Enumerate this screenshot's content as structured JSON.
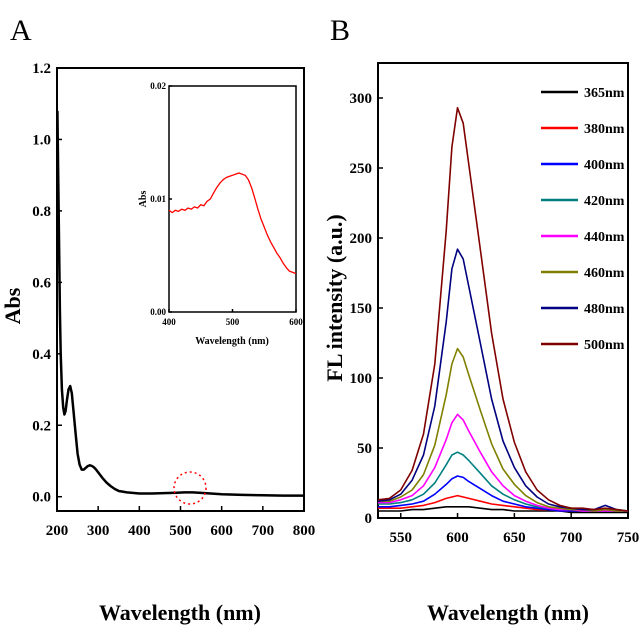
{
  "chart_data": [
    {
      "panel": "A",
      "type": "line",
      "xlabel": "Wavelength (nm)",
      "ylabel": "Abs",
      "xlim": [
        200,
        800
      ],
      "ylim": [
        -0.04,
        1.2
      ],
      "xticks": [
        200,
        300,
        400,
        500,
        600,
        700,
        800
      ],
      "yticks": [
        0.0,
        0.2,
        0.4,
        0.6,
        0.8,
        1.0,
        1.2
      ],
      "xtick_labels": [
        "200",
        "300",
        "400",
        "500",
        "600",
        "700",
        "800"
      ],
      "ytick_labels": [
        "0.0",
        "0.2",
        "0.4",
        "0.6",
        "0.8",
        "1.0",
        "1.2"
      ],
      "color": "#000000",
      "highlight_circle": {
        "center_x": 520,
        "center_y": 0.015,
        "color": "#ff0000"
      },
      "series": [
        {
          "x": [
            201,
            203,
            205,
            207,
            209,
            212,
            215,
            218,
            221,
            224,
            228,
            232,
            236,
            240,
            245,
            250,
            255,
            260,
            265,
            270,
            275,
            280,
            285,
            290,
            295,
            300,
            310,
            320,
            330,
            340,
            350,
            370,
            400,
            430,
            460,
            490,
            510,
            530,
            560,
            600,
            650,
            700,
            750,
            800
          ],
          "y": [
            1.08,
            0.9,
            0.7,
            0.52,
            0.4,
            0.3,
            0.25,
            0.23,
            0.24,
            0.27,
            0.3,
            0.31,
            0.29,
            0.24,
            0.18,
            0.12,
            0.09,
            0.076,
            0.076,
            0.081,
            0.086,
            0.088,
            0.086,
            0.082,
            0.076,
            0.068,
            0.053,
            0.04,
            0.03,
            0.022,
            0.016,
            0.012,
            0.009,
            0.009,
            0.01,
            0.011,
            0.012,
            0.012,
            0.01,
            0.007,
            0.005,
            0.004,
            0.003,
            0.003
          ]
        }
      ]
    },
    {
      "panel": "A-inset",
      "type": "line",
      "xlabel": "Wavelength (nm)",
      "ylabel": "Abs",
      "xlim": [
        400,
        600
      ],
      "ylim": [
        0,
        0.02
      ],
      "xticks": [
        400,
        500,
        600
      ],
      "yticks": [
        0.0,
        0.01,
        0.02
      ],
      "xtick_labels": [
        "400",
        "500",
        "600"
      ],
      "ytick_labels": [
        "0.00",
        "0.01",
        "0.02"
      ],
      "color": "#ff0000",
      "series": [
        {
          "x": [
            400,
            405,
            410,
            415,
            420,
            425,
            430,
            435,
            440,
            445,
            450,
            455,
            460,
            465,
            470,
            475,
            480,
            485,
            490,
            495,
            500,
            505,
            510,
            515,
            520,
            525,
            530,
            535,
            540,
            545,
            550,
            555,
            560,
            565,
            570,
            575,
            580,
            585,
            590,
            595,
            600
          ],
          "y": [
            0.009,
            0.0088,
            0.009,
            0.0089,
            0.0091,
            0.009,
            0.0092,
            0.0091,
            0.0093,
            0.0092,
            0.0095,
            0.0094,
            0.0098,
            0.01,
            0.0105,
            0.011,
            0.0114,
            0.0117,
            0.0119,
            0.012,
            0.0121,
            0.0122,
            0.0123,
            0.0122,
            0.0121,
            0.0117,
            0.011,
            0.0101,
            0.0091,
            0.0082,
            0.0075,
            0.0068,
            0.0062,
            0.0057,
            0.0052,
            0.0048,
            0.0043,
            0.0039,
            0.0036,
            0.0035,
            0.0034
          ]
        }
      ]
    },
    {
      "panel": "B",
      "type": "line",
      "xlabel": "Wavelength (nm)",
      "ylabel": "FL intensity (a.u.)",
      "xlim": [
        530,
        750
      ],
      "ylim": [
        0,
        325
      ],
      "xticks": [
        550,
        600,
        650,
        700,
        750
      ],
      "yticks": [
        0,
        50,
        100,
        150,
        200,
        250,
        300
      ],
      "xtick_labels": [
        "550",
        "600",
        "650",
        "700",
        "750"
      ],
      "ytick_labels": [
        "0",
        "50",
        "100",
        "150",
        "200",
        "250",
        "300"
      ],
      "legend_position": "top-right",
      "x": [
        530,
        540,
        550,
        560,
        570,
        580,
        590,
        595,
        600,
        605,
        610,
        620,
        630,
        640,
        650,
        660,
        670,
        680,
        690,
        700,
        710,
        720,
        730,
        740,
        750
      ],
      "series": [
        {
          "name": "365nm",
          "color": "#000000",
          "values": [
            5,
            5,
            5,
            6,
            6,
            7,
            8,
            8,
            8,
            8,
            8,
            7,
            6,
            6,
            5,
            5,
            5,
            5,
            5,
            4,
            4,
            4,
            4,
            4,
            4
          ]
        },
        {
          "name": "380nm",
          "color": "#ff0000",
          "values": [
            7,
            7,
            7,
            8,
            9,
            11,
            14,
            15,
            16,
            15,
            14,
            12,
            10,
            9,
            8,
            7,
            6,
            6,
            5,
            5,
            5,
            5,
            5,
            5,
            5
          ]
        },
        {
          "name": "400nm",
          "color": "#0000ff",
          "values": [
            8,
            8,
            9,
            10,
            12,
            17,
            24,
            28,
            30,
            29,
            26,
            21,
            16,
            12,
            10,
            8,
            7,
            6,
            5,
            5,
            5,
            5,
            5,
            5,
            5
          ]
        },
        {
          "name": "420nm",
          "color": "#008080",
          "values": [
            10,
            10,
            11,
            13,
            17,
            25,
            38,
            45,
            47,
            45,
            41,
            32,
            23,
            17,
            13,
            10,
            8,
            7,
            6,
            6,
            5,
            5,
            5,
            5,
            5
          ]
        },
        {
          "name": "440nm",
          "color": "#ff00ff",
          "values": [
            11,
            11,
            13,
            16,
            23,
            36,
            56,
            68,
            74,
            70,
            62,
            47,
            33,
            23,
            16,
            12,
            9,
            7,
            6,
            6,
            5,
            5,
            5,
            5,
            5
          ]
        },
        {
          "name": "460nm",
          "color": "#808000",
          "values": [
            12,
            12,
            15,
            20,
            31,
            52,
            88,
            110,
            121,
            115,
            102,
            77,
            53,
            35,
            24,
            16,
            11,
            8,
            7,
            6,
            6,
            5,
            6,
            5,
            5
          ]
        },
        {
          "name": "480nm",
          "color": "#000080",
          "values": [
            12,
            13,
            17,
            27,
            45,
            80,
            140,
            178,
            192,
            185,
            165,
            125,
            85,
            55,
            36,
            23,
            15,
            10,
            8,
            7,
            6,
            6,
            9,
            6,
            5
          ]
        },
        {
          "name": "500nm",
          "color": "#800000",
          "values": [
            13,
            14,
            20,
            34,
            60,
            110,
            205,
            265,
            293,
            282,
            252,
            192,
            132,
            85,
            54,
            33,
            20,
            13,
            9,
            7,
            7,
            6,
            7,
            6,
            5
          ]
        }
      ]
    }
  ],
  "labels": {
    "panel_a": "A",
    "panel_b": "B",
    "a_xlabel": "Wavelength (nm)",
    "a_ylabel": "Abs",
    "inset_xlabel": "Wavelength (nm)",
    "inset_ylabel": "Abs",
    "b_xlabel": "Wavelength (nm)",
    "b_ylabel": "FL intensity (a.u.)"
  }
}
